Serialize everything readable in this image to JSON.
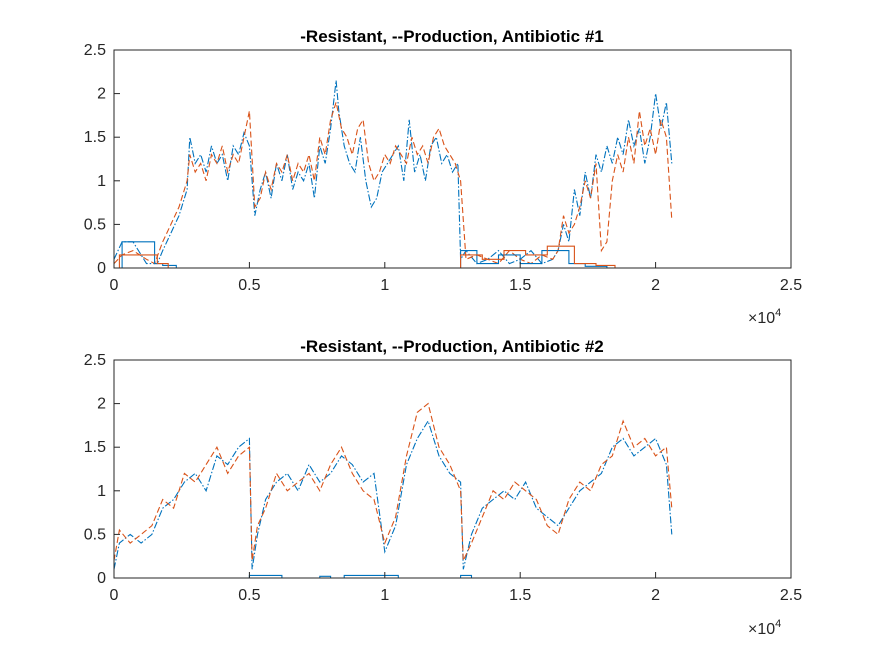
{
  "colors": {
    "blue": "#0072BD",
    "orange": "#D95319",
    "axis": "#262626"
  },
  "chart_data": [
    {
      "type": "line",
      "title": "-Resistant, --Production, Antibiotic #1",
      "xlim": [
        0,
        25000
      ],
      "ylim": [
        0,
        2.5
      ],
      "xticks": [
        0,
        5000,
        10000,
        15000,
        20000,
        25000
      ],
      "xticklabels": [
        "0",
        "0.5",
        "1",
        "1.5",
        "2",
        "2.5"
      ],
      "yticks": [
        0,
        0.5,
        1,
        1.5,
        2,
        2.5
      ],
      "yticklabels": [
        "0",
        "0.5",
        "1",
        "1.5",
        "2",
        "2.5"
      ],
      "x_multiplier_base": "×10",
      "x_multiplier_exp": "4",
      "grid": false,
      "series": [
        {
          "color": "blue",
          "style": "dashdot",
          "x": [
            0,
            300,
            700,
            1200,
            1600,
            1800,
            2100,
            2400,
            2700,
            2800,
            3000,
            3200,
            3400,
            3600,
            3800,
            4000,
            4200,
            4400,
            4600,
            4800,
            5000,
            5200,
            5400,
            5600,
            5800,
            6000,
            6200,
            6400,
            6600,
            6800,
            7000,
            7200,
            7400,
            7600,
            7800,
            8000,
            8200,
            8300,
            8500,
            8700,
            8900,
            9100,
            9300,
            9500,
            9700,
            9900,
            10100,
            10300,
            10500,
            10700,
            10900,
            11100,
            11300,
            11500,
            11700,
            11900,
            12100,
            12300,
            12500,
            12700,
            12800,
            13000,
            13400,
            13800,
            14200,
            14600,
            15000,
            15400,
            15800,
            16200,
            16400,
            16600,
            16800,
            17000,
            17200,
            17400,
            17600,
            17800,
            18000,
            18200,
            18400,
            18600,
            18800,
            19000,
            19200,
            19400,
            19600,
            19800,
            20000,
            20200,
            20400,
            20600
          ],
          "y": [
            0.1,
            0.3,
            0.3,
            0.05,
            0.05,
            0.2,
            0.4,
            0.6,
            0.9,
            1.5,
            1.2,
            1.3,
            1.1,
            1.4,
            1.2,
            1.3,
            1.0,
            1.4,
            1.3,
            1.55,
            1.4,
            0.6,
            0.9,
            1.1,
            0.8,
            1.2,
            1.0,
            1.3,
            0.9,
            1.1,
            1.0,
            1.2,
            0.8,
            1.4,
            1.2,
            1.6,
            2.15,
            1.8,
            1.4,
            1.2,
            1.1,
            1.5,
            1.0,
            0.7,
            0.8,
            1.1,
            1.2,
            1.3,
            1.4,
            1.0,
            1.7,
            1.1,
            1.3,
            1.0,
            1.4,
            1.5,
            1.2,
            1.3,
            1.1,
            1.2,
            0.1,
            0.2,
            0.05,
            0.1,
            0.2,
            0.05,
            0.1,
            0.2,
            0.05,
            0.1,
            0.2,
            0.5,
            0.3,
            0.9,
            0.6,
            1.1,
            0.8,
            1.3,
            1.1,
            1.4,
            1.2,
            1.5,
            1.3,
            1.7,
            1.4,
            1.6,
            1.2,
            1.5,
            2.0,
            1.6,
            1.9,
            1.2
          ]
        },
        {
          "color": "orange",
          "style": "dashed",
          "x": [
            0,
            300,
            700,
            1200,
            1500,
            1800,
            2100,
            2400,
            2700,
            2800,
            3000,
            3200,
            3400,
            3600,
            3800,
            4000,
            4200,
            4400,
            4600,
            4800,
            5000,
            5200,
            5400,
            5600,
            5800,
            6000,
            6200,
            6400,
            6600,
            6800,
            7000,
            7200,
            7400,
            7600,
            7800,
            8000,
            8200,
            8400,
            8600,
            8800,
            9000,
            9200,
            9400,
            9600,
            9800,
            10000,
            10200,
            10400,
            10600,
            10800,
            11000,
            11200,
            11400,
            11600,
            11800,
            12000,
            12200,
            12400,
            12600,
            12800,
            13000,
            13400,
            13800,
            14200,
            14600,
            15000,
            15400,
            15800,
            16200,
            16400,
            16600,
            16800,
            17000,
            17200,
            17400,
            17600,
            17800,
            18000,
            18200,
            18400,
            18600,
            18800,
            19000,
            19200,
            19400,
            19600,
            19800,
            20000,
            20200,
            20400,
            20600
          ],
          "y": [
            0.05,
            0.15,
            0.2,
            0.1,
            0.05,
            0.3,
            0.5,
            0.7,
            1.0,
            1.3,
            1.1,
            1.2,
            1.0,
            1.3,
            1.2,
            1.4,
            1.1,
            1.3,
            1.2,
            1.5,
            1.8,
            0.7,
            0.8,
            1.1,
            0.9,
            1.2,
            1.1,
            1.3,
            1.0,
            1.2,
            1.1,
            1.3,
            1.0,
            1.5,
            1.3,
            1.7,
            1.9,
            1.6,
            1.5,
            1.3,
            1.6,
            1.7,
            1.2,
            1.0,
            1.1,
            1.3,
            1.2,
            1.4,
            1.3,
            1.2,
            1.5,
            1.3,
            1.4,
            1.2,
            1.5,
            1.6,
            1.4,
            1.3,
            1.2,
            1.0,
            0.1,
            0.15,
            0.1,
            0.05,
            0.2,
            0.1,
            0.05,
            0.15,
            0.1,
            0.2,
            0.6,
            0.4,
            0.5,
            0.7,
            1.0,
            0.8,
            1.2,
            0.2,
            0.3,
            1.0,
            1.3,
            1.1,
            1.5,
            1.2,
            1.8,
            1.4,
            1.6,
            1.3,
            1.7,
            1.5,
            0.55
          ]
        },
        {
          "color": "blue",
          "style": "solid",
          "x": [
            0,
            300,
            300,
            1500,
            1500,
            1800,
            1800,
            2300,
            2300,
            12800,
            12800,
            13400,
            13400,
            14200,
            14200,
            15000,
            15000,
            15800,
            15800,
            16800,
            16800,
            17400,
            17400,
            18200,
            18200,
            20700
          ],
          "y": [
            0,
            0,
            0.3,
            0.3,
            0.05,
            0.05,
            0.03,
            0.03,
            0,
            0,
            0.2,
            0.2,
            0.05,
            0.05,
            0.15,
            0.15,
            0.05,
            0.05,
            0.2,
            0.2,
            0.05,
            0.05,
            0.02,
            0.02,
            0,
            0
          ]
        },
        {
          "color": "orange",
          "style": "solid",
          "x": [
            0,
            200,
            200,
            1600,
            1600,
            2000,
            2000,
            12800,
            12800,
            13600,
            13600,
            14400,
            14400,
            15200,
            15200,
            16000,
            16000,
            17000,
            17000,
            17800,
            17800,
            18500,
            18500,
            20700
          ],
          "y": [
            0,
            0,
            0.15,
            0.15,
            0.05,
            0.05,
            0,
            0,
            0.15,
            0.15,
            0.1,
            0.1,
            0.2,
            0.2,
            0.15,
            0.15,
            0.25,
            0.25,
            0.05,
            0.05,
            0.03,
            0.03,
            0,
            0
          ]
        }
      ]
    },
    {
      "type": "line",
      "title": "-Resistant, --Production, Antibiotic #2",
      "xlim": [
        0,
        25000
      ],
      "ylim": [
        0,
        2.5
      ],
      "xticks": [
        0,
        5000,
        10000,
        15000,
        20000,
        25000
      ],
      "xticklabels": [
        "0",
        "0.5",
        "1",
        "1.5",
        "2",
        "2.5"
      ],
      "yticks": [
        0,
        0.5,
        1,
        1.5,
        2,
        2.5
      ],
      "yticklabels": [
        "0",
        "0.5",
        "1",
        "1.5",
        "2",
        "2.5"
      ],
      "x_multiplier_base": "×10",
      "x_multiplier_exp": "4",
      "grid": false,
      "series": [
        {
          "color": "blue",
          "style": "dashdot",
          "x": [
            0,
            200,
            600,
            1000,
            1400,
            1800,
            2200,
            2600,
            3000,
            3400,
            3800,
            4200,
            4600,
            5000,
            5100,
            5300,
            5600,
            6000,
            6400,
            6800,
            7200,
            7600,
            8000,
            8400,
            8800,
            9200,
            9600,
            10000,
            10400,
            10800,
            11200,
            11600,
            12000,
            12400,
            12800,
            12900,
            13200,
            13600,
            14000,
            14400,
            14800,
            15200,
            15600,
            16000,
            16400,
            16800,
            17200,
            17600,
            18000,
            18400,
            18800,
            19200,
            19600,
            20000,
            20400,
            20600
          ],
          "y": [
            0.1,
            0.4,
            0.5,
            0.4,
            0.5,
            0.8,
            0.9,
            1.1,
            1.2,
            1.0,
            1.4,
            1.3,
            1.5,
            1.6,
            0.1,
            0.5,
            0.9,
            1.1,
            1.2,
            1.0,
            1.3,
            1.1,
            1.2,
            1.4,
            1.3,
            1.1,
            1.2,
            0.3,
            0.6,
            1.3,
            1.6,
            1.8,
            1.4,
            1.2,
            1.1,
            0.1,
            0.5,
            0.8,
            0.9,
            1.0,
            0.9,
            1.1,
            0.8,
            0.7,
            0.6,
            0.8,
            1.0,
            1.1,
            1.2,
            1.5,
            1.6,
            1.4,
            1.5,
            1.6,
            1.3,
            0.5
          ]
        },
        {
          "color": "orange",
          "style": "dashed",
          "x": [
            0,
            200,
            600,
            1000,
            1400,
            1800,
            2200,
            2600,
            3000,
            3400,
            3800,
            4200,
            4600,
            5000,
            5100,
            5300,
            5600,
            6000,
            6400,
            6800,
            7200,
            7600,
            8000,
            8400,
            8800,
            9200,
            9600,
            10000,
            10400,
            10800,
            11200,
            11600,
            12000,
            12400,
            12800,
            12900,
            13200,
            13600,
            14000,
            14400,
            14800,
            15200,
            15600,
            16000,
            16400,
            16800,
            17200,
            17600,
            18000,
            18400,
            18800,
            19200,
            19600,
            20000,
            20400,
            20600
          ],
          "y": [
            0.2,
            0.55,
            0.4,
            0.5,
            0.6,
            0.9,
            0.8,
            1.2,
            1.1,
            1.3,
            1.5,
            1.2,
            1.4,
            1.5,
            0.2,
            0.6,
            0.8,
            1.2,
            1.0,
            1.1,
            1.2,
            1.0,
            1.3,
            1.5,
            1.2,
            1.0,
            0.9,
            0.4,
            0.7,
            1.4,
            1.9,
            2.0,
            1.5,
            1.3,
            1.0,
            0.2,
            0.4,
            0.7,
            1.0,
            0.9,
            1.1,
            1.0,
            0.9,
            0.6,
            0.5,
            0.9,
            1.1,
            1.0,
            1.3,
            1.4,
            1.8,
            1.5,
            1.6,
            1.4,
            1.5,
            0.8
          ]
        },
        {
          "color": "blue",
          "style": "solid",
          "x": [
            0,
            5000,
            5000,
            6200,
            6200,
            7600,
            7600,
            8000,
            8000,
            8500,
            8500,
            10500,
            10500,
            12800,
            12800,
            13200,
            13200,
            20700
          ],
          "y": [
            0,
            0,
            0.03,
            0.03,
            0,
            0,
            0.02,
            0.02,
            0,
            0,
            0.03,
            0.03,
            0,
            0,
            0.03,
            0.03,
            0,
            0
          ]
        },
        {
          "color": "orange",
          "style": "solid",
          "x": [
            0,
            20700
          ],
          "y": [
            0,
            0
          ]
        }
      ]
    }
  ]
}
